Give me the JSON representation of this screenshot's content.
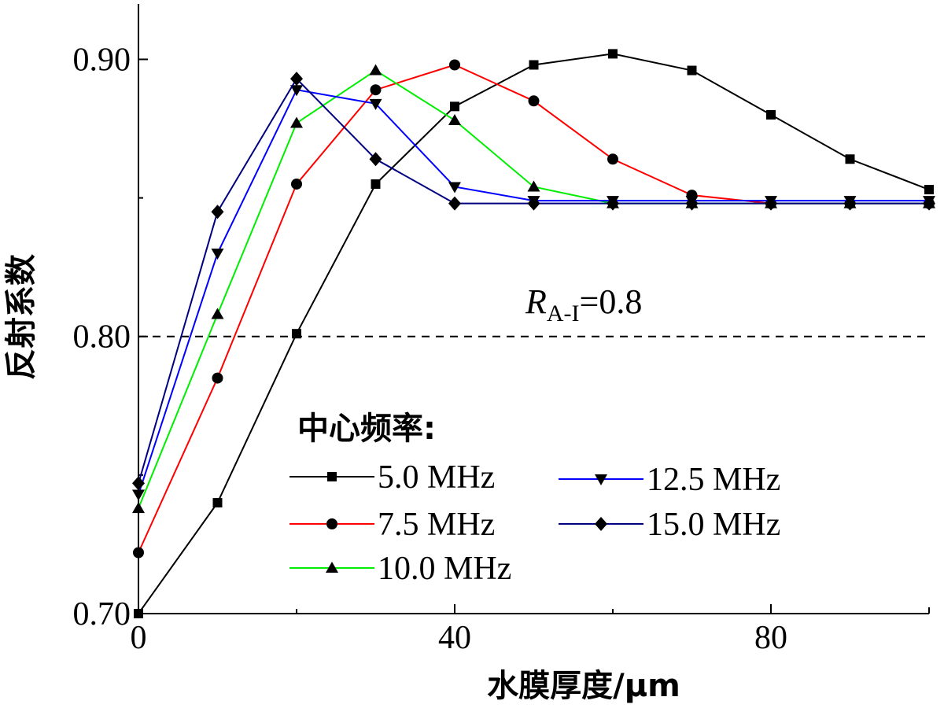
{
  "chart_data": {
    "type": "line",
    "title": "",
    "xlabel": "水膜厚度/μm",
    "ylabel": "反射系数",
    "xlim": [
      0,
      100
    ],
    "ylim": [
      0.7,
      0.92
    ],
    "x_ticks": [
      0,
      40,
      80
    ],
    "y_ticks": [
      0.7,
      0.8,
      0.9
    ],
    "y_tick_labels": [
      "0.70",
      "0.80",
      "0.90"
    ],
    "x": [
      0,
      10,
      20,
      30,
      40,
      50,
      60,
      70,
      80,
      90,
      100
    ],
    "series": [
      {
        "name": "5.0 MHz",
        "color": "#000000",
        "marker": "square",
        "values": [
          0.7,
          0.74,
          0.801,
          0.855,
          0.883,
          0.898,
          0.902,
          0.896,
          0.88,
          0.864,
          0.853
        ]
      },
      {
        "name": "7.5 MHz",
        "color": "#ff0000",
        "marker": "circle",
        "values": [
          0.722,
          0.785,
          0.855,
          0.889,
          0.898,
          0.885,
          0.864,
          0.851,
          0.848,
          0.848,
          0.848
        ]
      },
      {
        "name": "10.0 MHz",
        "color": "#00ee00",
        "marker": "triangle-up",
        "values": [
          0.738,
          0.808,
          0.877,
          0.896,
          0.878,
          0.854,
          0.848,
          0.848,
          0.848,
          0.848,
          0.848
        ]
      },
      {
        "name": "12.5 MHz",
        "color": "#0000ff",
        "marker": "triangle-down",
        "values": [
          0.743,
          0.83,
          0.889,
          0.884,
          0.854,
          0.849,
          0.849,
          0.849,
          0.849,
          0.849,
          0.849
        ]
      },
      {
        "name": "15.0 MHz",
        "color": "#000080",
        "marker": "diamond",
        "values": [
          0.747,
          0.845,
          0.893,
          0.864,
          0.848,
          0.848,
          0.848,
          0.848,
          0.848,
          0.848,
          0.848
        ]
      }
    ],
    "reference_line": {
      "y": 0.8,
      "style": "dashed",
      "label_main": "R",
      "label_sub": "A-I",
      "label_rest": "=0.8"
    },
    "legend": {
      "title": "中心频率:",
      "placement": "bottom-center",
      "columns": 2
    },
    "grid": false
  }
}
